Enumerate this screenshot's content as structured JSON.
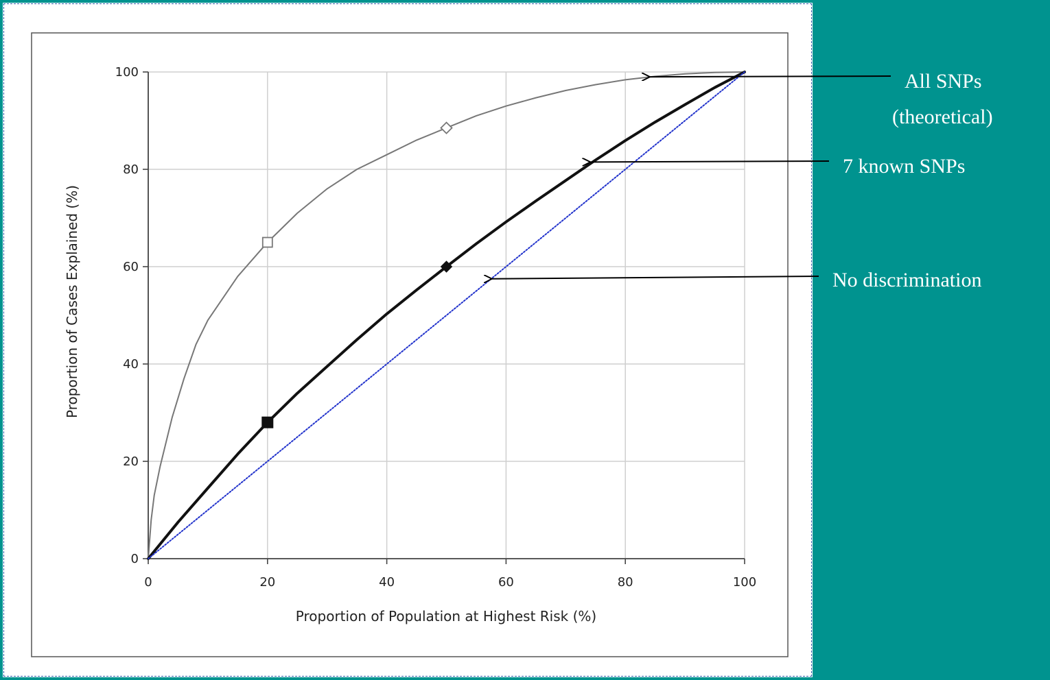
{
  "chart_data": {
    "type": "line",
    "title": "",
    "xlabel": "Proportion of Population at Highest Risk (%)",
    "ylabel": "Proportion of Cases Explained (%)",
    "xlim": [
      0,
      100
    ],
    "ylim": [
      0,
      100
    ],
    "xticks": [
      0,
      20,
      40,
      60,
      80,
      100
    ],
    "yticks": [
      0,
      20,
      40,
      60,
      80,
      100
    ],
    "grid": true,
    "series": [
      {
        "name": "All SNPs (theoretical)",
        "color": "#777777",
        "x": [
          0,
          0.5,
          1,
          2,
          4,
          6,
          8,
          10,
          15,
          20,
          25,
          30,
          35,
          40,
          45,
          50,
          55,
          60,
          65,
          70,
          75,
          80,
          85,
          90,
          95,
          100
        ],
        "y": [
          0,
          8,
          13,
          19,
          29,
          37,
          44,
          49,
          58,
          65,
          71,
          76,
          80,
          83,
          86,
          88.5,
          91,
          93,
          94.7,
          96.2,
          97.4,
          98.4,
          99.1,
          99.6,
          99.9,
          100
        ],
        "markers": [
          {
            "x": 20,
            "y": 65,
            "shape": "square-open"
          },
          {
            "x": 50,
            "y": 88.5,
            "shape": "diamond-open"
          }
        ]
      },
      {
        "name": "7 known SNPs",
        "color": "#111111",
        "x": [
          0,
          5,
          10,
          15,
          20,
          25,
          30,
          35,
          40,
          45,
          50,
          55,
          60,
          65,
          70,
          75,
          80,
          85,
          90,
          95,
          100
        ],
        "y": [
          0,
          7.5,
          14.5,
          21.5,
          28,
          34,
          39.5,
          45,
          50.3,
          55.2,
          60,
          64.7,
          69.2,
          73.5,
          77.7,
          81.9,
          85.9,
          89.7,
          93.3,
          96.8,
          100
        ],
        "markers": [
          {
            "x": 20,
            "y": 28,
            "shape": "square-filled"
          },
          {
            "x": 50,
            "y": 60,
            "shape": "diamond-filled"
          }
        ]
      },
      {
        "name": "No discrimination",
        "color": "#2233cc",
        "x": [
          0,
          100
        ],
        "y": [
          0,
          100
        ]
      }
    ],
    "annotations": [
      {
        "text_lines": [
          "All SNPs",
          "(theoretical)"
        ],
        "points_to": {
          "x": 84,
          "y": 99
        }
      },
      {
        "text_lines": [
          "7 known SNPs"
        ],
        "points_to": {
          "x": 74,
          "y": 81.5
        }
      },
      {
        "text_lines": [
          "No discrimination"
        ],
        "points_to": {
          "x": 57.5,
          "y": 57.5
        }
      }
    ]
  }
}
